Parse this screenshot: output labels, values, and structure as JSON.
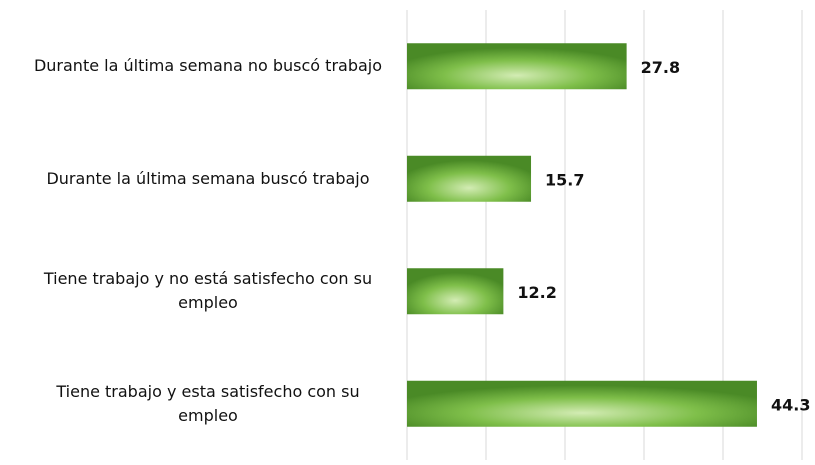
{
  "chart_data": {
    "type": "bar",
    "orientation": "horizontal",
    "categories": [
      "Durante la última semana no buscó trabajo",
      "Durante la última semana buscó trabajo",
      "Tiene trabajo y no está satisfecho con su empleo",
      "Tiene trabajo y esta satisfecho con su empleo"
    ],
    "values": [
      27.8,
      15.7,
      12.2,
      44.3
    ],
    "color": "#4a8a26",
    "xlim": [
      0,
      50
    ],
    "xticks": [
      0,
      10,
      20,
      30,
      40,
      50
    ],
    "grid": true
  }
}
